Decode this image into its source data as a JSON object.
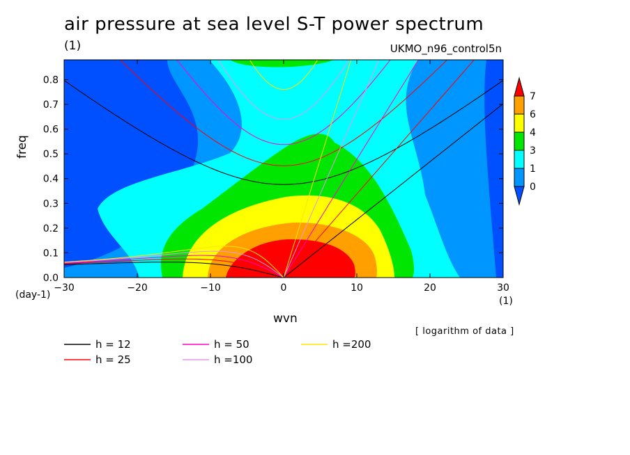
{
  "chart_data": {
    "type": "heatmap",
    "title": "air pressure at sea level S-T power spectrum",
    "units_label": "(1)",
    "model_label": "UKMO_n96_control5n",
    "xlabel": "wvn",
    "ylabel": "freq",
    "x_unit_left": "(day-1)",
    "x_unit_right": "(1)",
    "note": "[ logarithm of data ]",
    "xlim": [
      -30,
      30
    ],
    "ylim": [
      0,
      0.88
    ],
    "x_ticks": [
      -30,
      -20,
      -10,
      0,
      10,
      20,
      30
    ],
    "x_tick_labels": [
      "−30",
      "−20",
      "−10",
      "0",
      "10",
      "20",
      "30"
    ],
    "y_ticks": [
      0.0,
      0.1,
      0.2,
      0.3,
      0.4,
      0.5,
      0.6,
      0.7,
      0.8
    ],
    "y_tick_labels": [
      "0.0",
      "0.1",
      "0.2",
      "0.3",
      "0.4",
      "0.5",
      "0.6",
      "0.7",
      "0.8"
    ],
    "colorbar": {
      "levels": [
        0,
        1,
        3,
        4,
        6,
        7
      ],
      "level_labels": [
        "0",
        "1",
        "3",
        "4",
        "6",
        "7"
      ],
      "colors": [
        "#0050ff",
        "#0096ff",
        "#00ffff",
        "#00e600",
        "#ffff00",
        "#ffa000",
        "#ff0000"
      ]
    },
    "contour_regions": [
      {
        "color": "#0096ff",
        "description": "level 0-1 broad band"
      },
      {
        "color": "#00ffff",
        "center_wvn": 0,
        "level": 1
      },
      {
        "color": "#00e600",
        "center_wvn": 2,
        "level": 3
      },
      {
        "color": "#ffff00",
        "center_wvn": 3,
        "level": 4
      },
      {
        "color": "#ffa000",
        "center_wvn": 4,
        "level": 6
      },
      {
        "color": "#ff0000",
        "center_wvn": 4,
        "level": 7
      }
    ],
    "series": [
      {
        "name": "h = 12",
        "color": "#000000",
        "h": 12
      },
      {
        "name": "h = 25",
        "color": "#ff0000",
        "h": 25
      },
      {
        "name": "h = 50",
        "color": "#ff00c8",
        "h": 50
      },
      {
        "name": "h =100",
        "color": "#e696e6",
        "h": 100
      },
      {
        "name": "h =200",
        "color": "#ffe600",
        "h": 200
      }
    ]
  }
}
